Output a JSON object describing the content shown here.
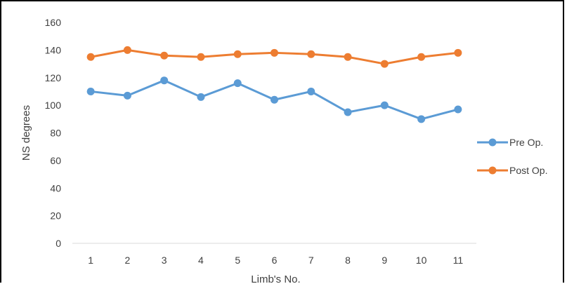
{
  "chart_data": {
    "type": "line",
    "title": "",
    "xlabel": "Limb's No.",
    "ylabel": "NS degrees",
    "categories": [
      "1",
      "2",
      "3",
      "4",
      "5",
      "6",
      "7",
      "8",
      "9",
      "10",
      "11"
    ],
    "ylim": [
      0,
      160
    ],
    "yticks": [
      0,
      20,
      40,
      60,
      80,
      100,
      120,
      140,
      160
    ],
    "grid": false,
    "legend_position": "right",
    "series": [
      {
        "name": "Pre Op.",
        "color": "#5B9BD5",
        "values": [
          110,
          107,
          118,
          106,
          116,
          104,
          110,
          95,
          100,
          90,
          97
        ]
      },
      {
        "name": "Post Op.",
        "color": "#ED7D31",
        "values": [
          135,
          140,
          136,
          135,
          137,
          138,
          137,
          135,
          130,
          135,
          138
        ]
      }
    ]
  }
}
